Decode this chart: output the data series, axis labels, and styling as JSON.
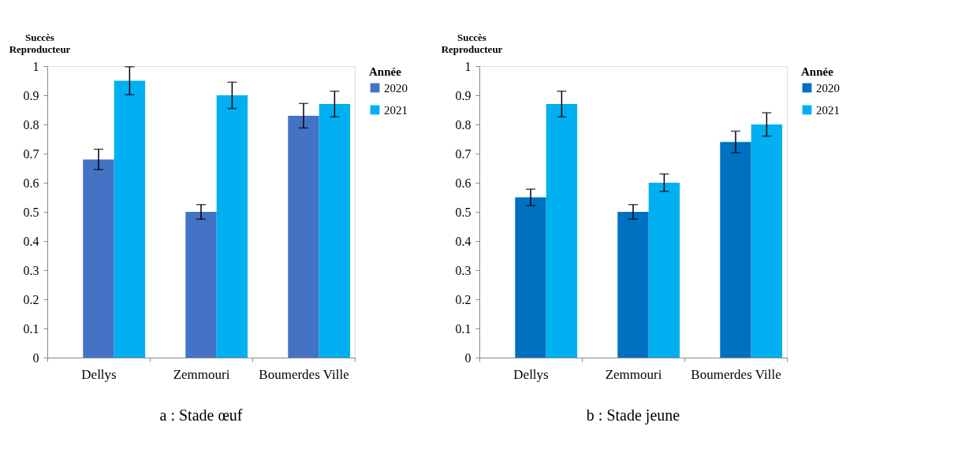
{
  "chart_data": [
    {
      "type": "bar",
      "title": "a : Stade œuf",
      "ylabel": "Succès Reproducteur",
      "legend_title": "Année",
      "legend": "right",
      "grid": false,
      "categories": [
        "Dellys",
        "Zemmouri",
        "Boumerdes Ville"
      ],
      "series": [
        {
          "name": "2020",
          "color": "#4472c4",
          "values": [
            0.68,
            0.5,
            0.83
          ],
          "errors": [
            0.035,
            0.025,
            0.042
          ]
        },
        {
          "name": "2021",
          "color": "#00b0f0",
          "values": [
            0.95,
            0.9,
            0.87
          ],
          "errors": [
            0.048,
            0.045,
            0.044
          ]
        }
      ],
      "ylim": [
        0,
        1
      ],
      "yticks": [
        0,
        0.1,
        0.2,
        0.3,
        0.4,
        0.5,
        0.6,
        0.7,
        0.8,
        0.9,
        1
      ]
    },
    {
      "type": "bar",
      "title": "b : Stade jeune",
      "ylabel": "Succès Reproducteur",
      "legend_title": "Année",
      "legend": "right",
      "grid": false,
      "categories": [
        "Dellys",
        "Zemmouri",
        "Boumerdes Ville"
      ],
      "series": [
        {
          "name": "2020",
          "color": "#0070c0",
          "values": [
            0.55,
            0.5,
            0.74
          ],
          "errors": [
            0.028,
            0.025,
            0.037
          ]
        },
        {
          "name": "2021",
          "color": "#00b0f0",
          "values": [
            0.87,
            0.6,
            0.8
          ],
          "errors": [
            0.044,
            0.03,
            0.04
          ]
        }
      ],
      "ylim": [
        0,
        1
      ],
      "yticks": [
        0,
        0.1,
        0.2,
        0.3,
        0.4,
        0.5,
        0.6,
        0.7,
        0.8,
        0.9,
        1
      ]
    }
  ]
}
